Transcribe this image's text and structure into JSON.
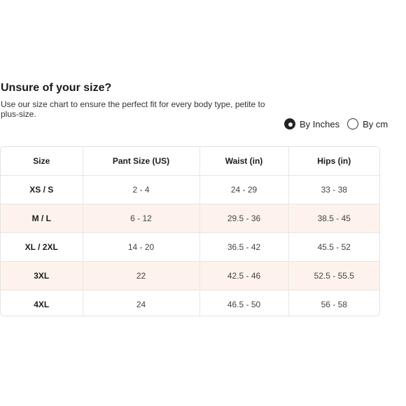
{
  "heading": {
    "title": "Unsure of your size?",
    "subtitle": "Use our size chart to ensure the perfect fit for every body type, petite to plus-size."
  },
  "unit_toggle": {
    "options": [
      {
        "label": "By Inches",
        "selected": true
      },
      {
        "label": "By cm",
        "selected": false
      }
    ]
  },
  "size_table": {
    "headers": [
      "Size",
      "Pant Size (US)",
      "Waist (in)",
      "Hips (in)"
    ],
    "rows": [
      [
        "XS / S",
        "2 - 4",
        "24 - 29",
        "33 - 38"
      ],
      [
        "M / L",
        "6 - 12",
        "29.5 - 36",
        "38.5 - 45"
      ],
      [
        "XL / 2XL",
        "14 - 20",
        "36.5 - 42",
        "45.5 - 52"
      ],
      [
        "3XL",
        "22",
        "42.5 - 46",
        "52.5 - 55.5"
      ],
      [
        "4XL",
        "24",
        "46.5 - 50",
        "56 - 58"
      ]
    ],
    "highlight_color": "#fdf3ec"
  }
}
